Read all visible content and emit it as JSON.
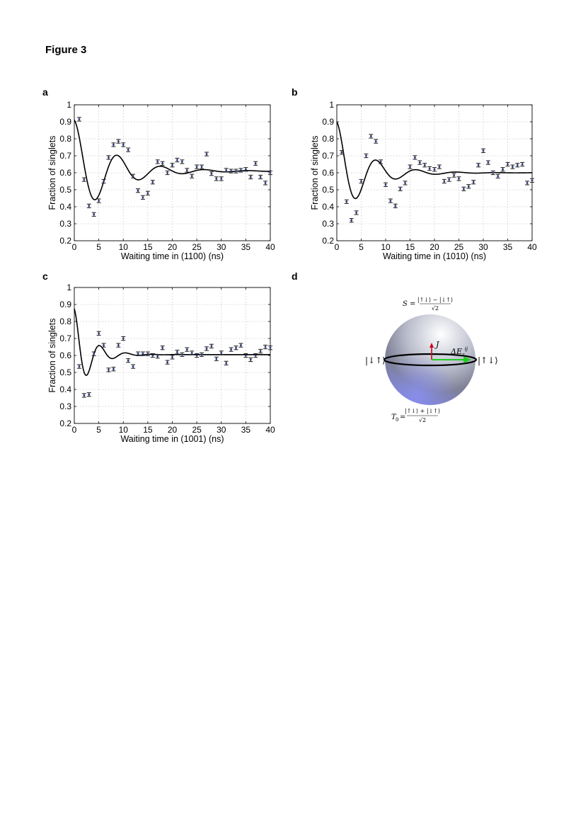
{
  "figure_title": "Figure 3",
  "panels": {
    "a": "a",
    "b": "b",
    "c": "c",
    "d": "d"
  },
  "chart_data": [
    {
      "id": "a",
      "type": "scatter",
      "xlabel": "Waiting time in (1100) (ns)",
      "ylabel": "Fraction of singlets",
      "xlim": [
        0,
        40
      ],
      "ylim": [
        0.2,
        1.0
      ],
      "xticks": [
        0,
        5,
        10,
        15,
        20,
        25,
        30,
        35,
        40
      ],
      "yticks": [
        0.2,
        0.3,
        0.4,
        0.5,
        0.6,
        0.7,
        0.8,
        0.9,
        1
      ],
      "grid": true,
      "x": [
        1,
        2,
        3,
        4,
        5,
        6,
        7,
        8,
        9,
        10,
        11,
        12,
        13,
        14,
        15,
        16,
        17,
        18,
        19,
        20,
        21,
        22,
        23,
        24,
        25,
        26,
        27,
        28,
        29,
        30,
        31,
        32,
        33,
        34,
        35,
        36,
        37,
        38,
        39,
        40
      ],
      "y": [
        0.915,
        0.56,
        0.405,
        0.355,
        0.435,
        0.55,
        0.69,
        0.765,
        0.785,
        0.765,
        0.735,
        0.58,
        0.495,
        0.455,
        0.48,
        0.545,
        0.665,
        0.655,
        0.6,
        0.645,
        0.675,
        0.665,
        0.615,
        0.58,
        0.635,
        0.635,
        0.71,
        0.595,
        0.565,
        0.565,
        0.615,
        0.61,
        0.61,
        0.615,
        0.62,
        0.575,
        0.655,
        0.575,
        0.54,
        0.6
      ],
      "fit": {
        "offset": 0.61,
        "amplitude": 0.3,
        "period_ns": 8.9,
        "decay_ns": 7.5
      }
    },
    {
      "id": "b",
      "type": "scatter",
      "xlabel": "Waiting time in (1010) (ns)",
      "ylabel": "Fraction of singlets",
      "xlim": [
        0,
        40
      ],
      "ylim": [
        0.2,
        1.0
      ],
      "xticks": [
        0,
        5,
        10,
        15,
        20,
        25,
        30,
        35,
        40
      ],
      "yticks": [
        0.2,
        0.3,
        0.4,
        0.5,
        0.6,
        0.7,
        0.8,
        0.9,
        1
      ],
      "grid": true,
      "x": [
        1,
        2,
        3,
        4,
        5,
        6,
        7,
        8,
        9,
        10,
        11,
        12,
        13,
        14,
        15,
        16,
        17,
        18,
        19,
        20,
        21,
        22,
        23,
        24,
        25,
        26,
        27,
        28,
        29,
        30,
        31,
        32,
        33,
        34,
        35,
        36,
        37,
        38,
        39,
        40
      ],
      "y": [
        0.72,
        0.43,
        0.32,
        0.365,
        0.55,
        0.7,
        0.815,
        0.785,
        0.665,
        0.53,
        0.435,
        0.405,
        0.505,
        0.54,
        0.635,
        0.69,
        0.66,
        0.645,
        0.625,
        0.62,
        0.635,
        0.55,
        0.56,
        0.585,
        0.565,
        0.505,
        0.52,
        0.545,
        0.645,
        0.73,
        0.66,
        0.6,
        0.58,
        0.62,
        0.65,
        0.635,
        0.645,
        0.65,
        0.54,
        0.555
      ],
      "fit": {
        "offset": 0.6,
        "amplitude": 0.3,
        "period_ns": 8.2,
        "decay_ns": 5.8
      }
    },
    {
      "id": "c",
      "type": "scatter",
      "xlabel": "Waiting time in (1001) (ns)",
      "ylabel": "Fraction of singlets",
      "xlim": [
        0,
        40
      ],
      "ylim": [
        0.2,
        1.0
      ],
      "xticks": [
        0,
        5,
        10,
        15,
        20,
        25,
        30,
        35,
        40
      ],
      "yticks": [
        0.2,
        0.3,
        0.4,
        0.5,
        0.6,
        0.7,
        0.8,
        0.9,
        1
      ],
      "grid": true,
      "x": [
        1,
        2,
        3,
        4,
        5,
        6,
        7,
        8,
        9,
        10,
        11,
        12,
        13,
        14,
        15,
        16,
        17,
        18,
        19,
        20,
        21,
        22,
        23,
        24,
        25,
        26,
        27,
        28,
        29,
        30,
        31,
        32,
        33,
        34,
        35,
        36,
        37,
        38,
        39,
        40
      ],
      "y": [
        0.535,
        0.365,
        0.37,
        0.61,
        0.73,
        0.66,
        0.515,
        0.52,
        0.66,
        0.7,
        0.57,
        0.535,
        0.61,
        0.61,
        0.61,
        0.6,
        0.595,
        0.645,
        0.56,
        0.59,
        0.62,
        0.605,
        0.635,
        0.615,
        0.6,
        0.605,
        0.64,
        0.655,
        0.58,
        0.615,
        0.555,
        0.635,
        0.645,
        0.66,
        0.6,
        0.575,
        0.6,
        0.625,
        0.65,
        0.645
      ],
      "fit": {
        "offset": 0.605,
        "amplitude": 0.27,
        "period_ns": 5.3,
        "decay_ns": 3.2
      }
    }
  ],
  "bloch": {
    "top_label_lhs": "S =",
    "top_label_num": "|↑↓⟩ − |↓↑⟩",
    "top_label_den": "√2",
    "bottom_label_lhs": "T",
    "bottom_label_sub": "0",
    "bottom_label_eq": "=",
    "bottom_label_num": "|↑↓⟩ + |↓↑⟩",
    "bottom_label_den": "√2",
    "left_state": "|↓↑⟩",
    "right_state": "|↑↓⟩",
    "j_label": "J",
    "delta_label": "ΔE",
    "delta_sub": "z",
    "delta_sup": "ij",
    "colors": {
      "j_arrow": "#d0021b",
      "delta_arrow": "#22cc22",
      "sphere_bottom": "#8a8ff0"
    }
  }
}
